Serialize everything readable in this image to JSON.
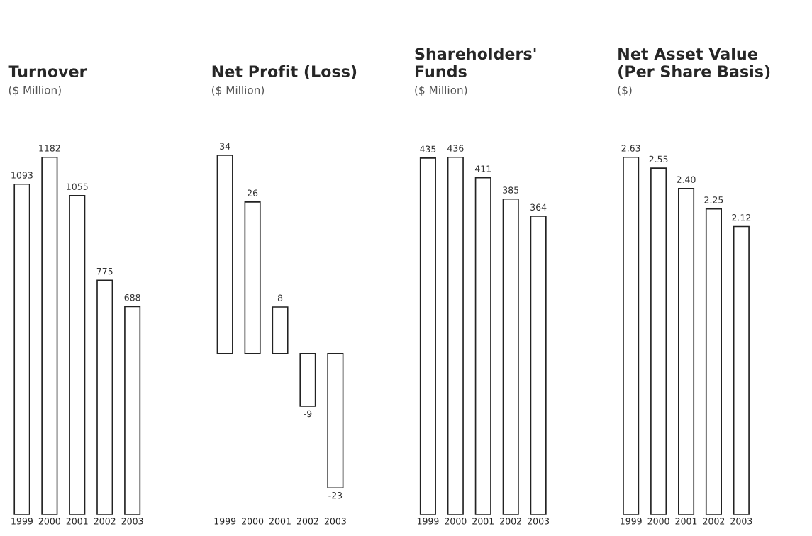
{
  "chart_data": [
    {
      "type": "bar",
      "title": "Turnover",
      "subtitle": "($ Million)",
      "categories": [
        "1999",
        "2000",
        "2001",
        "2002",
        "2003"
      ],
      "values": [
        1093,
        1182,
        1055,
        775,
        688
      ],
      "value_labels": [
        "1093",
        "1182",
        "1055",
        "775",
        "688"
      ],
      "color": "#ffffff"
    },
    {
      "type": "bar",
      "title": "Net Profit (Loss)",
      "subtitle": "($ Million)",
      "categories": [
        "1999",
        "2000",
        "2001",
        "2002",
        "2003"
      ],
      "values": [
        34,
        26,
        8,
        -9,
        -23
      ],
      "value_labels": [
        "34",
        "26",
        "8",
        "-9",
        "-23"
      ],
      "color": "#ffffff"
    },
    {
      "type": "bar",
      "title": "Shareholders'\nFunds",
      "subtitle": "($ Million)",
      "categories": [
        "1999",
        "2000",
        "2001",
        "2002",
        "2003"
      ],
      "values": [
        435,
        436,
        411,
        385,
        364
      ],
      "value_labels": [
        "435",
        "436",
        "411",
        "385",
        "364"
      ],
      "color": "#ffffff"
    },
    {
      "type": "bar",
      "title": "Net Asset Value\n(Per Share Basis)",
      "subtitle": "($)",
      "categories": [
        "1999",
        "2000",
        "2001",
        "2002",
        "2003"
      ],
      "values": [
        2.63,
        2.55,
        2.4,
        2.25,
        2.12
      ],
      "value_labels": [
        "2.63",
        "2.55",
        "2.40",
        "2.25",
        "2.12"
      ],
      "color": "#ffffff"
    }
  ]
}
